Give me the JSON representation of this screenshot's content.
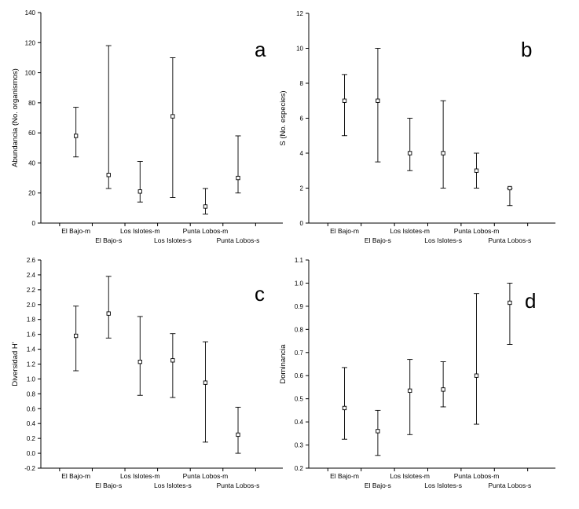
{
  "chart_data": [
    {
      "type": "scatter",
      "letter": "a",
      "ylabel": "Abundancia (No. organismos)",
      "ylim": [
        0,
        140
      ],
      "yticks": [
        0,
        20,
        40,
        60,
        80,
        100,
        120,
        140
      ],
      "ytick_labels": [
        "0",
        "20",
        "40",
        "60",
        "80",
        "100",
        "120",
        "140"
      ],
      "categories": [
        "El Bajo-m",
        "El Bajo-s",
        "Los Islotes-m",
        "Los Islotes-s",
        "Punta Lobos-m",
        "Punta Lobos-s"
      ],
      "values": [
        58,
        32,
        21,
        71,
        11,
        30
      ],
      "lower": [
        44,
        23,
        14,
        17,
        6,
        20
      ],
      "upper": [
        77,
        118,
        41,
        110,
        23,
        58
      ]
    },
    {
      "type": "scatter",
      "letter": "b",
      "ylabel": "S (No. especies)",
      "ylim": [
        0,
        12
      ],
      "yticks": [
        0,
        2,
        4,
        6,
        8,
        10,
        12
      ],
      "ytick_labels": [
        "0",
        "2",
        "4",
        "6",
        "8",
        "10",
        "12"
      ],
      "categories": [
        "El Bajo-m",
        "El Bajo-s",
        "Los Islotes-m",
        "Los Islotes-s",
        "Punta Lobos-m",
        "Punta Lobos-s"
      ],
      "values": [
        7,
        7,
        4,
        4,
        3,
        2
      ],
      "lower": [
        5,
        3.5,
        3,
        2,
        2,
        1
      ],
      "upper": [
        8.5,
        10,
        6,
        7,
        4,
        2
      ]
    },
    {
      "type": "scatter",
      "letter": "c",
      "ylabel": "Diversidad H'",
      "ylim": [
        -0.2,
        2.6
      ],
      "yticks": [
        -0.2,
        0.0,
        0.2,
        0.4,
        0.6,
        0.8,
        1.0,
        1.2,
        1.4,
        1.6,
        1.8,
        2.0,
        2.2,
        2.4,
        2.6
      ],
      "ytick_labels": [
        "-0.2",
        "0.0",
        "0.2",
        "0.4",
        "0.6",
        "0.8",
        "1.0",
        "1.2",
        "1.4",
        "1.6",
        "1.8",
        "2.0",
        "2.2",
        "2.4",
        "2.6"
      ],
      "categories": [
        "El Bajo-m",
        "El Bajo-s",
        "Los Islotes-m",
        "Los Islotes-s",
        "Punta Lobos-m",
        "Punta Lobos-s"
      ],
      "values": [
        1.58,
        1.88,
        1.23,
        1.25,
        0.95,
        0.25
      ],
      "lower": [
        1.11,
        1.55,
        0.78,
        0.75,
        0.15,
        0.0
      ],
      "upper": [
        1.98,
        2.38,
        1.84,
        1.61,
        1.5,
        0.62
      ]
    },
    {
      "type": "scatter",
      "letter": "d",
      "ylabel": "Dominancia",
      "ylim": [
        0.2,
        1.1
      ],
      "yticks": [
        0.2,
        0.3,
        0.4,
        0.5,
        0.6,
        0.7,
        0.8,
        0.9,
        1.0,
        1.1
      ],
      "ytick_labels": [
        "0.2",
        "0.3",
        "0.4",
        "0.5",
        "0.6",
        "0.7",
        "0.8",
        "0.9",
        "1.0",
        "1.1"
      ],
      "categories": [
        "El Bajo-m",
        "El Bajo-s",
        "Los Islotes-m",
        "Los Islotes-s",
        "Punta Lobos-m",
        "Punta Lobos-s"
      ],
      "values": [
        0.46,
        0.36,
        0.535,
        0.54,
        0.6,
        0.915
      ],
      "lower": [
        0.325,
        0.255,
        0.345,
        0.465,
        0.39,
        0.735
      ],
      "upper": [
        0.635,
        0.45,
        0.67,
        0.66,
        0.955,
        1.0
      ]
    }
  ]
}
